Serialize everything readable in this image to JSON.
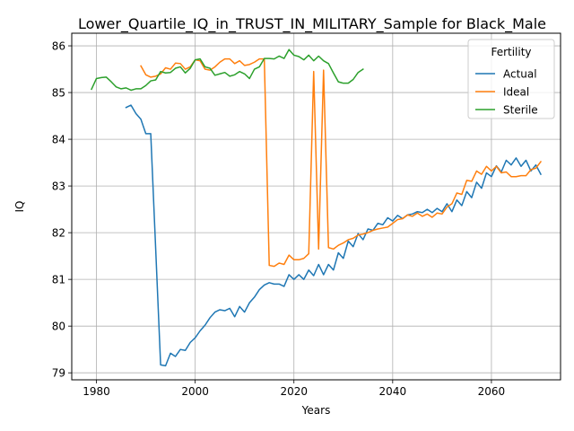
{
  "chart_data": {
    "type": "line",
    "title": "Lower_Quartile_IQ_in_TRUST_IN_MILITARY_Sample for Black_Male",
    "xlabel": "Years",
    "ylabel": "IQ",
    "xlim": [
      1975,
      2074
    ],
    "ylim": [
      78.85,
      86.27
    ],
    "xticks": [
      1980,
      2000,
      2020,
      2040,
      2060
    ],
    "yticks": [
      79,
      80,
      81,
      82,
      83,
      84,
      85,
      86
    ],
    "grid": true,
    "legend": {
      "title": "Fertility",
      "placement": "top-right"
    },
    "series": [
      {
        "name": "Actual",
        "color": "#1f77b4",
        "x": [
          1986,
          1987,
          1988,
          1989,
          1990,
          1991,
          1992,
          1993,
          1994,
          1995,
          1996,
          1997,
          1998,
          1999,
          2000,
          2001,
          2002,
          2003,
          2004,
          2005,
          2006,
          2007,
          2008,
          2009,
          2010,
          2011,
          2012,
          2013,
          2014,
          2015,
          2016,
          2017,
          2018,
          2019,
          2020,
          2021,
          2022,
          2023,
          2024,
          2025,
          2026,
          2027,
          2028,
          2029,
          2030,
          2031,
          2032,
          2033,
          2034,
          2035,
          2036,
          2037,
          2038,
          2039,
          2040,
          2041,
          2042,
          2043,
          2044,
          2045,
          2046,
          2047,
          2048,
          2049,
          2050,
          2051,
          2052,
          2053,
          2054,
          2055,
          2056,
          2057,
          2058,
          2059,
          2060,
          2061,
          2062,
          2063,
          2064,
          2065,
          2066,
          2067,
          2068,
          2069,
          2070
        ],
        "y": [
          84.68,
          84.73,
          84.55,
          84.43,
          84.12,
          84.12,
          81.65,
          79.17,
          79.15,
          79.42,
          79.35,
          79.5,
          79.48,
          79.65,
          79.75,
          79.9,
          80.02,
          80.18,
          80.3,
          80.35,
          80.33,
          80.38,
          80.2,
          80.42,
          80.3,
          80.5,
          80.62,
          80.78,
          80.88,
          80.93,
          80.9,
          80.9,
          80.85,
          81.1,
          81.0,
          81.1,
          81.0,
          81.2,
          81.08,
          81.32,
          81.1,
          81.32,
          81.2,
          81.57,
          81.45,
          81.82,
          81.7,
          81.98,
          81.85,
          82.08,
          82.05,
          82.2,
          82.17,
          82.32,
          82.25,
          82.37,
          82.3,
          82.38,
          82.4,
          82.45,
          82.43,
          82.5,
          82.43,
          82.52,
          82.45,
          82.62,
          82.45,
          82.7,
          82.58,
          82.88,
          82.75,
          83.08,
          82.95,
          83.28,
          83.2,
          83.43,
          83.3,
          83.55,
          83.45,
          83.6,
          83.42,
          83.55,
          83.32,
          83.45,
          83.25
        ]
      },
      {
        "name": "Ideal",
        "color": "#ff7f0e",
        "x": [
          1989,
          1990,
          1991,
          1992,
          1993,
          1994,
          1995,
          1996,
          1997,
          1998,
          1999,
          2000,
          2001,
          2002,
          2003,
          2004,
          2005,
          2006,
          2007,
          2008,
          2009,
          2010,
          2011,
          2012,
          2013,
          2014,
          2015,
          2016,
          2017,
          2018,
          2019,
          2020,
          2021,
          2022,
          2023,
          2024,
          2025,
          2026,
          2027,
          2028,
          2029,
          2030,
          2031,
          2032,
          2033,
          2034,
          2035,
          2036,
          2037,
          2038,
          2039,
          2040,
          2041,
          2042,
          2043,
          2044,
          2045,
          2046,
          2047,
          2048,
          2049,
          2050,
          2051,
          2052,
          2053,
          2054,
          2055,
          2056,
          2057,
          2058,
          2059,
          2060,
          2061,
          2062,
          2063,
          2064,
          2065,
          2066,
          2067,
          2068,
          2069,
          2070
        ],
        "y": [
          85.57,
          85.38,
          85.33,
          85.35,
          85.4,
          85.53,
          85.5,
          85.63,
          85.62,
          85.5,
          85.55,
          85.7,
          85.68,
          85.5,
          85.48,
          85.55,
          85.65,
          85.72,
          85.72,
          85.62,
          85.68,
          85.58,
          85.6,
          85.65,
          85.72,
          85.72,
          81.3,
          81.28,
          81.35,
          81.32,
          81.52,
          81.42,
          81.42,
          81.45,
          81.55,
          85.45,
          81.65,
          85.48,
          81.68,
          81.65,
          81.73,
          81.78,
          81.85,
          81.88,
          81.95,
          81.97,
          82.0,
          82.05,
          82.08,
          82.1,
          82.12,
          82.2,
          82.28,
          82.3,
          82.38,
          82.35,
          82.42,
          82.35,
          82.4,
          82.33,
          82.42,
          82.4,
          82.55,
          82.62,
          82.85,
          82.82,
          83.12,
          83.1,
          83.32,
          83.25,
          83.42,
          83.32,
          83.42,
          83.28,
          83.3,
          83.2,
          83.2,
          83.22,
          83.22,
          83.35,
          83.38,
          83.52
        ]
      },
      {
        "name": "Sterile",
        "color": "#2ca02c",
        "x": [
          1979,
          1980,
          1981,
          1982,
          1983,
          1984,
          1985,
          1986,
          1987,
          1988,
          1989,
          1990,
          1991,
          1992,
          1993,
          1994,
          1995,
          1996,
          1997,
          1998,
          1999,
          2000,
          2001,
          2002,
          2003,
          2004,
          2005,
          2006,
          2007,
          2008,
          2009,
          2010,
          2011,
          2012,
          2013,
          2014,
          2015,
          2016,
          2017,
          2018,
          2019,
          2020,
          2021,
          2022,
          2023,
          2024,
          2025,
          2026,
          2027,
          2028,
          2029,
          2030,
          2031,
          2032,
          2033,
          2034
        ],
        "y": [
          85.07,
          85.3,
          85.32,
          85.33,
          85.23,
          85.12,
          85.08,
          85.1,
          85.05,
          85.08,
          85.08,
          85.15,
          85.25,
          85.27,
          85.45,
          85.42,
          85.43,
          85.52,
          85.55,
          85.42,
          85.52,
          85.7,
          85.72,
          85.55,
          85.52,
          85.37,
          85.4,
          85.43,
          85.35,
          85.38,
          85.45,
          85.4,
          85.3,
          85.5,
          85.55,
          85.73,
          85.73,
          85.72,
          85.78,
          85.73,
          85.92,
          85.8,
          85.77,
          85.7,
          85.8,
          85.68,
          85.78,
          85.68,
          85.62,
          85.42,
          85.23,
          85.2,
          85.2,
          85.28,
          85.43,
          85.5
        ]
      }
    ]
  }
}
